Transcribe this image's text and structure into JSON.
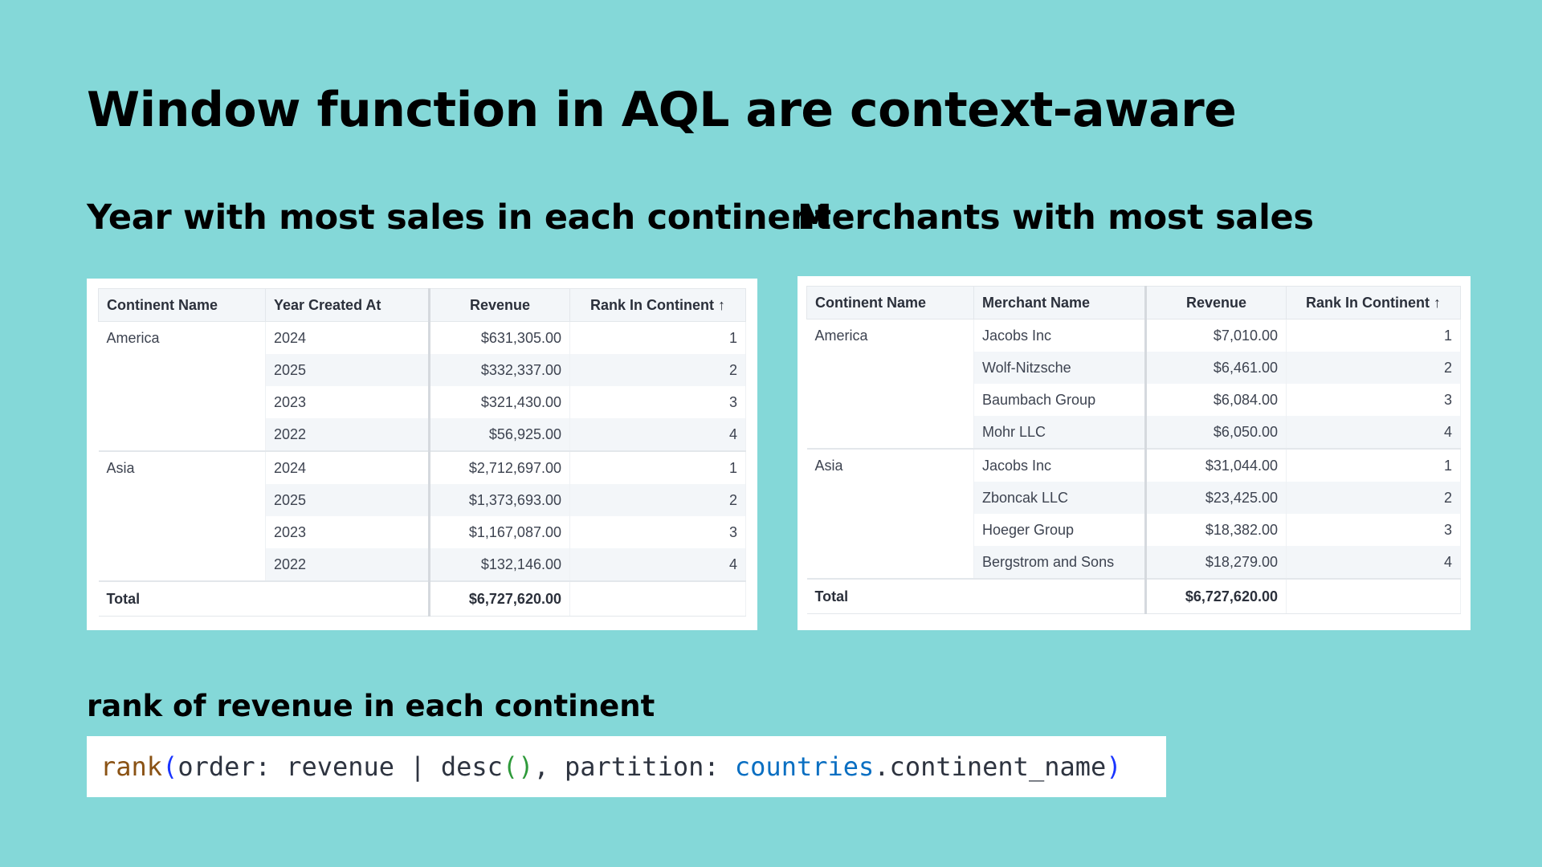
{
  "title": "Window function in AQL are context-aware",
  "left": {
    "subtitle": "Year with most sales in each continent",
    "headers": [
      "Continent Name",
      "Year Created At",
      "Revenue",
      "Rank In Continent ↑"
    ],
    "groups": [
      {
        "continent": "America",
        "rows": [
          [
            "2024",
            "$631,305.00",
            "1"
          ],
          [
            "2025",
            "$332,337.00",
            "2"
          ],
          [
            "2023",
            "$321,430.00",
            "3"
          ],
          [
            "2022",
            "$56,925.00",
            "4"
          ]
        ]
      },
      {
        "continent": "Asia",
        "rows": [
          [
            "2024",
            "$2,712,697.00",
            "1"
          ],
          [
            "2025",
            "$1,373,693.00",
            "2"
          ],
          [
            "2023",
            "$1,167,087.00",
            "3"
          ],
          [
            "2022",
            "$132,146.00",
            "4"
          ]
        ]
      }
    ],
    "total_label": "Total",
    "total_value": "$6,727,620.00"
  },
  "right": {
    "subtitle": "Merchants with most sales",
    "headers": [
      "Continent Name",
      "Merchant Name",
      "Revenue",
      "Rank In Continent ↑"
    ],
    "groups": [
      {
        "continent": "America",
        "rows": [
          [
            "Jacobs Inc",
            "$7,010.00",
            "1"
          ],
          [
            "Wolf-Nitzsche",
            "$6,461.00",
            "2"
          ],
          [
            "Baumbach Group",
            "$6,084.00",
            "3"
          ],
          [
            "Mohr LLC",
            "$6,050.00",
            "4"
          ]
        ]
      },
      {
        "continent": "Asia",
        "rows": [
          [
            "Jacobs Inc",
            "$31,044.00",
            "1"
          ],
          [
            "Zboncak LLC",
            "$23,425.00",
            "2"
          ],
          [
            "Hoeger Group",
            "$18,382.00",
            "3"
          ],
          [
            "Bergstrom and Sons",
            "$18,279.00",
            "4"
          ]
        ]
      }
    ],
    "total_label": "Total",
    "total_value": "$6,727,620.00"
  },
  "code": {
    "label": "rank of revenue in each continent",
    "fn": "rank",
    "open": "(",
    "part1": "order: revenue | desc",
    "inner_parens": "()",
    "part2": ", partition: ",
    "ns": "countries",
    "part3": ".continent_name",
    "close": ")"
  }
}
